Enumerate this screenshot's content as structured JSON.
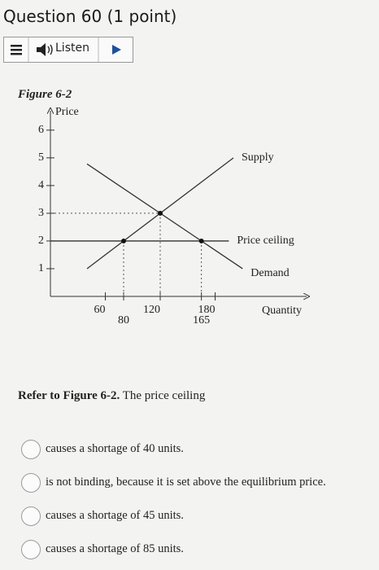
{
  "question_title": "Question 60 (1 point)",
  "toolbar": {
    "listen": "Listen"
  },
  "figure_label": "Figure 6-2",
  "chart_data": {
    "type": "line",
    "x_label": "Quantity",
    "y_label": "Price",
    "xlim": [
      0,
      280
    ],
    "ylim": [
      0,
      6.7
    ],
    "xticks": [
      60,
      80,
      120,
      165,
      180
    ],
    "yticks": [
      1,
      2,
      3,
      4,
      5,
      6
    ],
    "series": [
      {
        "name": "Supply",
        "color": "#333333",
        "x": [
          40,
          200
        ],
        "values": [
          1,
          5
        ]
      },
      {
        "name": "Price ceiling",
        "color": "#333333",
        "x": [
          0,
          195
        ],
        "values": [
          2,
          2
        ]
      },
      {
        "name": "Demand",
        "color": "#333333",
        "x": [
          40,
          210
        ],
        "values": [
          4.78,
          1
        ]
      }
    ],
    "points": [
      {
        "x": 80,
        "y": 2
      },
      {
        "x": 120,
        "y": 3
      },
      {
        "x": 165,
        "y": 2
      }
    ]
  },
  "prompt": {
    "bold": "Refer to Figure 6-2.",
    "rest": "The price ceiling"
  },
  "options": [
    "causes a shortage of 40 units.",
    "is not binding, because it is set above the equilibrium price.",
    "causes a shortage of 45 units.",
    "causes a shortage of 85 units."
  ]
}
